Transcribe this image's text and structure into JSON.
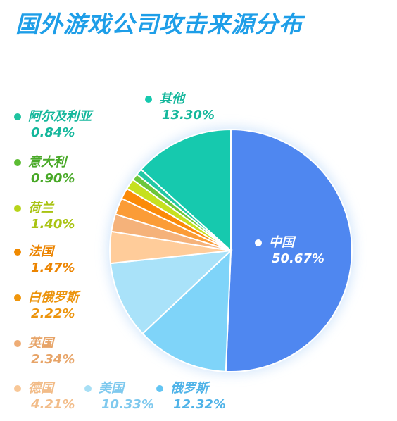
{
  "title": "国外游戏公司攻击来源分布",
  "chart_data": {
    "type": "pie",
    "title": "国外游戏公司攻击来源分布",
    "start": "12 o'clock",
    "direction": "clockwise",
    "slices": [
      {
        "label": "中国",
        "value": 50.67,
        "display": "50.67%",
        "color": "#4f87f0"
      },
      {
        "label": "俄罗斯",
        "value": 12.32,
        "display": "12.32%",
        "color": "#7fd4f9"
      },
      {
        "label": "美国",
        "value": 10.33,
        "display": "10.33%",
        "color": "#a9e2f9"
      },
      {
        "label": "德国",
        "value": 4.21,
        "display": "4.21%",
        "color": "#ffcc9a"
      },
      {
        "label": "英国",
        "value": 2.34,
        "display": "2.34%",
        "color": "#f5b27a"
      },
      {
        "label": "白俄罗斯",
        "value": 2.22,
        "display": "2.22%",
        "color": "#fb9c37"
      },
      {
        "label": "法国",
        "value": 1.47,
        "display": "1.47%",
        "color": "#fb8a08"
      },
      {
        "label": "荷兰",
        "value": 1.4,
        "display": "1.40%",
        "color": "#c6e01f"
      },
      {
        "label": "意大利",
        "value": 0.9,
        "display": "0.90%",
        "color": "#6cc63b"
      },
      {
        "label": "阿尔及利亚",
        "value": 0.84,
        "display": "0.84%",
        "color": "#22c8a4"
      },
      {
        "label": "其他",
        "value": 13.3,
        "display": "13.30%",
        "color": "#16c9ae"
      }
    ]
  },
  "legend": [
    {
      "label": "其他",
      "pct": "13.30%",
      "dot": "#16c9ae",
      "text": "#15b79c"
    },
    {
      "label": "阿尔及利亚",
      "pct": "0.84%",
      "dot": "#1fc3a0",
      "text": "#15b79c"
    },
    {
      "label": "意大利",
      "pct": "0.90%",
      "dot": "#5cbc33",
      "text": "#49a928"
    },
    {
      "label": "荷兰",
      "pct": "1.40%",
      "dot": "#b7d41a",
      "text": "#a9c313"
    },
    {
      "label": "法国",
      "pct": "1.47%",
      "dot": "#f08a00",
      "text": "#ec8400"
    },
    {
      "label": "白俄罗斯",
      "pct": "2.22%",
      "dot": "#f0960c",
      "text": "#ec940c"
    },
    {
      "label": "英国",
      "pct": "2.34%",
      "dot": "#eeac75",
      "text": "#e7a468"
    },
    {
      "label": "德国",
      "pct": "4.21%",
      "dot": "#f8c797",
      "text": "#f2bc88"
    },
    {
      "label": "美国",
      "pct": "10.33%",
      "dot": "#a7dff5",
      "text": "#7fc9ee"
    },
    {
      "label": "俄罗斯",
      "pct": "12.32%",
      "dot": "#63c5f3",
      "text": "#4fb3e8"
    },
    {
      "label": "中国",
      "pct": "50.67%",
      "dot": "#ffffff",
      "text": "#ffffff"
    }
  ]
}
